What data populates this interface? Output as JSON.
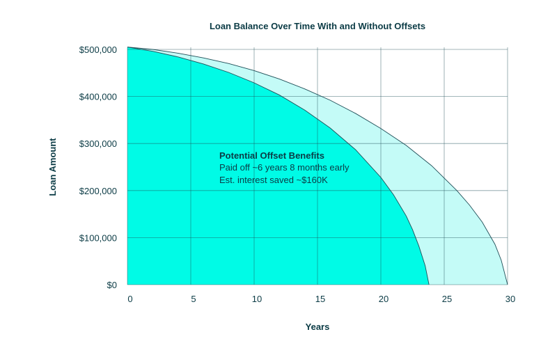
{
  "chart_data": {
    "type": "area",
    "title": "Loan Balance Over Time With and Without Offsets",
    "xlabel": "Years",
    "ylabel": "Loan Amount",
    "xlim": [
      0,
      30
    ],
    "ylim": [
      0,
      500000
    ],
    "x_ticks": [
      "0",
      "5",
      "10",
      "15",
      "20",
      "25",
      "30"
    ],
    "y_ticks": [
      "$0",
      "$100,000",
      "$200,000",
      "$300,000",
      "$400,000",
      "$500,000"
    ],
    "grid": true,
    "series": [
      {
        "color": "#c4fbf7",
        "x": [
          0,
          2,
          4,
          6,
          8,
          10,
          12,
          14,
          16,
          18,
          20,
          22,
          24,
          26,
          27,
          28,
          29,
          29.5,
          30
        ],
        "y": [
          505000,
          500000,
          492000,
          482000,
          470000,
          455000,
          437000,
          416000,
          392000,
          364000,
          332000,
          296000,
          253000,
          200000,
          169000,
          133000,
          86000,
          52000,
          0
        ]
      },
      {
        "color": "#00fbe6",
        "x": [
          0,
          2,
          4,
          6,
          8,
          10,
          12,
          14,
          16,
          18,
          20,
          21,
          22,
          22.5,
          23,
          23.5,
          23.8
        ],
        "y": [
          505000,
          496000,
          484000,
          469000,
          451000,
          429000,
          403000,
          371000,
          333000,
          287000,
          228000,
          191000,
          146000,
          117000,
          82000,
          40000,
          0
        ]
      }
    ],
    "annotation": {
      "title": "Potential Offset Benefits",
      "lines": [
        "Paid off ~6 years 8 months early",
        "Est. interest saved ~$160K"
      ]
    }
  }
}
